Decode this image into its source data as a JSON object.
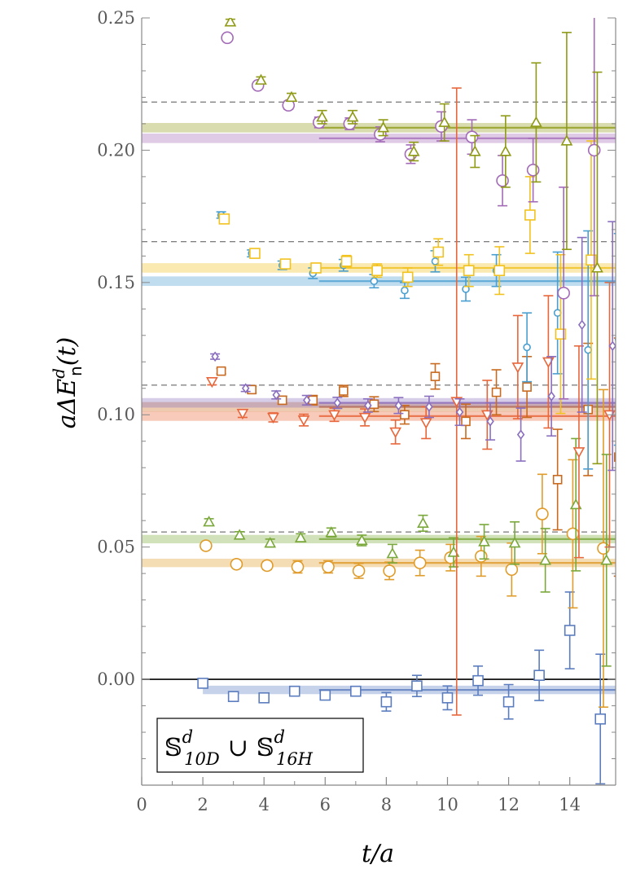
{
  "chart_data": {
    "type": "scatter",
    "title": "",
    "xlabel": "t/a",
    "ylabel": "aΔE",
    "ylabel_sup": "d",
    "ylabel_sub": "n",
    "ylabel_tail": "(t)",
    "xlim": [
      0,
      15.5
    ],
    "ylim": [
      -0.04,
      0.25
    ],
    "xticks": [
      0,
      2,
      4,
      6,
      8,
      10,
      12,
      14
    ],
    "yticks": [
      0.0,
      0.05,
      0.1,
      0.15,
      0.2,
      0.25
    ],
    "ytick_labels": [
      "0.00",
      "0.05",
      "0.10",
      "0.15",
      "0.20",
      "0.25"
    ],
    "legend": {
      "set1": "𝕊",
      "sup1": "d",
      "sub1": "10D",
      "union": "∪",
      "set2": "𝕊",
      "sup2": "d",
      "sub2": "16H",
      "position": "bottom-left"
    },
    "reference_lines": [
      0.0557,
      0.1112,
      0.1654,
      0.2182
    ],
    "zero_line": 0.0,
    "series": [
      {
        "marker": "square",
        "color": "#5b7dbf",
        "size": 6,
        "bands": [
          {
            "xmin": 2,
            "xmax": 15.5,
            "y": -0.004,
            "half": 0.0016
          }
        ],
        "points": [
          {
            "x": 2,
            "y": -0.0015,
            "e": 0.001
          },
          {
            "x": 3,
            "y": -0.0065,
            "e": 0.0012
          },
          {
            "x": 4,
            "y": -0.007,
            "e": 0.0013
          },
          {
            "x": 5,
            "y": -0.0045,
            "e": 0.0015
          },
          {
            "x": 6,
            "y": -0.006,
            "e": 0.0016
          },
          {
            "x": 7,
            "y": -0.0045,
            "e": 0.0018
          },
          {
            "x": 8,
            "y": -0.0085,
            "e": 0.0035
          },
          {
            "x": 9,
            "y": -0.0025,
            "e": 0.004
          },
          {
            "x": 10,
            "y": -0.007,
            "e": 0.0045
          },
          {
            "x": 11,
            "y": -0.0005,
            "e": 0.0055
          },
          {
            "x": 12,
            "y": -0.0085,
            "e": 0.0065
          },
          {
            "x": 13,
            "y": 0.0015,
            "e": 0.0095
          },
          {
            "x": 14,
            "y": 0.0185,
            "e": 0.0145
          },
          {
            "x": 15,
            "y": -0.015,
            "e": 0.0245
          }
        ]
      },
      {
        "marker": "circle",
        "color": "#e09c2a",
        "size": 7,
        "bands": [
          {
            "xmin": 0,
            "xmax": 15.5,
            "y": 0.044,
            "half": 0.0016
          }
        ],
        "points": [
          {
            "x": 2.1,
            "y": 0.0505,
            "e": 0.0012
          },
          {
            "x": 3.1,
            "y": 0.0435,
            "e": 0.0013
          },
          {
            "x": 4.1,
            "y": 0.043,
            "e": 0.0015
          },
          {
            "x": 5.1,
            "y": 0.0425,
            "e": 0.0023
          },
          {
            "x": 6.1,
            "y": 0.0425,
            "e": 0.0023
          },
          {
            "x": 7.1,
            "y": 0.041,
            "e": 0.0028
          },
          {
            "x": 8.1,
            "y": 0.041,
            "e": 0.0033
          },
          {
            "x": 9.1,
            "y": 0.044,
            "e": 0.0048
          },
          {
            "x": 10.1,
            "y": 0.046,
            "e": 0.005
          },
          {
            "x": 11.1,
            "y": 0.0465,
            "e": 0.0075
          },
          {
            "x": 12.1,
            "y": 0.0415,
            "e": 0.01
          },
          {
            "x": 13.1,
            "y": 0.0625,
            "e": 0.015
          },
          {
            "x": 14.1,
            "y": 0.055,
            "e": 0.028
          },
          {
            "x": 15.1,
            "y": 0.0495,
            "e": 0.06
          }
        ]
      },
      {
        "marker": "triangle-up",
        "color": "#7aa83a",
        "size": 6,
        "bands": [
          {
            "xmin": 0,
            "xmax": 15.5,
            "y": 0.053,
            "half": 0.0016
          }
        ],
        "points": [
          {
            "x": 2.2,
            "y": 0.0595,
            "e": 0.0012
          },
          {
            "x": 3.2,
            "y": 0.0545,
            "e": 0.0013
          },
          {
            "x": 4.2,
            "y": 0.0515,
            "e": 0.0015
          },
          {
            "x": 5.2,
            "y": 0.0535,
            "e": 0.0015
          },
          {
            "x": 6.2,
            "y": 0.0555,
            "e": 0.0017
          },
          {
            "x": 7.2,
            "y": 0.0525,
            "e": 0.002
          },
          {
            "x": 8.2,
            "y": 0.0475,
            "e": 0.0035
          },
          {
            "x": 9.2,
            "y": 0.059,
            "e": 0.003
          },
          {
            "x": 10.2,
            "y": 0.048,
            "e": 0.0055
          },
          {
            "x": 11.2,
            "y": 0.052,
            "e": 0.0065
          },
          {
            "x": 12.2,
            "y": 0.0515,
            "e": 0.008
          },
          {
            "x": 13.2,
            "y": 0.045,
            "e": 0.012
          },
          {
            "x": 14.2,
            "y": 0.066,
            "e": 0.025
          },
          {
            "x": 15.2,
            "y": 0.045,
            "e": 0.04
          }
        ]
      },
      {
        "marker": "triangle-down",
        "color": "#e8663a",
        "size": 6,
        "bands": [
          {
            "xmin": 0,
            "xmax": 15.5,
            "y": 0.0995,
            "half": 0.0018
          }
        ],
        "points": [
          {
            "x": 2.3,
            "y": 0.1125,
            "e": 0.0012
          },
          {
            "x": 3.3,
            "y": 0.1005,
            "e": 0.0015
          },
          {
            "x": 4.3,
            "y": 0.099,
            "e": 0.0017
          },
          {
            "x": 5.3,
            "y": 0.098,
            "e": 0.0022
          },
          {
            "x": 6.3,
            "y": 0.1,
            "e": 0.0025
          },
          {
            "x": 7.3,
            "y": 0.099,
            "e": 0.0032
          },
          {
            "x": 8.3,
            "y": 0.0935,
            "e": 0.0045
          },
          {
            "x": 9.3,
            "y": 0.097,
            "e": 0.006
          },
          {
            "x": 10.3,
            "y": 0.105,
            "e": 0.1185
          },
          {
            "x": 11.3,
            "y": 0.1,
            "e": 0.013
          },
          {
            "x": 12.3,
            "y": 0.118,
            "e": 0.0195
          },
          {
            "x": 13.3,
            "y": 0.12,
            "e": 0.025
          },
          {
            "x": 14.3,
            "y": 0.086,
            "e": 0.04
          },
          {
            "x": 15.3,
            "y": 0.1,
            "e": 0.05
          }
        ]
      },
      {
        "marker": "square",
        "color": "#c86a1f",
        "size": 5,
        "bands": [
          {
            "xmin": 0,
            "xmax": 15.5,
            "y": 0.103,
            "half": 0.0018
          }
        ],
        "points": [
          {
            "x": 2.6,
            "y": 0.1165,
            "e": 0.001
          },
          {
            "x": 3.6,
            "y": 0.1095,
            "e": 0.0012
          },
          {
            "x": 4.6,
            "y": 0.1055,
            "e": 0.0015
          },
          {
            "x": 5.6,
            "y": 0.1055,
            "e": 0.0018
          },
          {
            "x": 6.6,
            "y": 0.109,
            "e": 0.0021
          },
          {
            "x": 7.6,
            "y": 0.104,
            "e": 0.0028
          },
          {
            "x": 8.6,
            "y": 0.1,
            "e": 0.0035
          },
          {
            "x": 9.6,
            "y": 0.1145,
            "e": 0.0048
          },
          {
            "x": 10.6,
            "y": 0.0975,
            "e": 0.0065
          },
          {
            "x": 11.6,
            "y": 0.1085,
            "e": 0.0085
          },
          {
            "x": 12.6,
            "y": 0.1105,
            "e": 0.0115
          },
          {
            "x": 13.6,
            "y": 0.0755,
            "e": 0.019
          },
          {
            "x": 14.6,
            "y": 0.102,
            "e": 0.025
          },
          {
            "x": 15.6,
            "y": 0.084,
            "e": 0.045
          }
        ]
      },
      {
        "marker": "diamond",
        "color": "#8a6fbf",
        "size": 5,
        "bands": [
          {
            "xmin": 0,
            "xmax": 15.5,
            "y": 0.1045,
            "half": 0.0018
          }
        ],
        "points": [
          {
            "x": 2.4,
            "y": 0.122,
            "e": 0.001
          },
          {
            "x": 3.4,
            "y": 0.11,
            "e": 0.0012
          },
          {
            "x": 4.4,
            "y": 0.1075,
            "e": 0.0015
          },
          {
            "x": 5.4,
            "y": 0.1055,
            "e": 0.0018
          },
          {
            "x": 6.4,
            "y": 0.1045,
            "e": 0.0021
          },
          {
            "x": 7.4,
            "y": 0.1035,
            "e": 0.0025
          },
          {
            "x": 8.4,
            "y": 0.1035,
            "e": 0.003
          },
          {
            "x": 9.4,
            "y": 0.103,
            "e": 0.004
          },
          {
            "x": 10.4,
            "y": 0.101,
            "e": 0.005
          },
          {
            "x": 11.4,
            "y": 0.0975,
            "e": 0.007
          },
          {
            "x": 12.4,
            "y": 0.0925,
            "e": 0.01
          },
          {
            "x": 13.4,
            "y": 0.107,
            "e": 0.015
          },
          {
            "x": 14.4,
            "y": 0.134,
            "e": 0.033
          },
          {
            "x": 15.4,
            "y": 0.126,
            "e": 0.047
          }
        ]
      },
      {
        "marker": "circle",
        "color": "#4a9fd0",
        "size": 4,
        "bands": [
          {
            "xmin": 0,
            "xmax": 15.5,
            "y": 0.1505,
            "half": 0.0018
          }
        ],
        "points": [
          {
            "x": 2.6,
            "y": 0.1755,
            "e": 0.0012
          },
          {
            "x": 3.6,
            "y": 0.161,
            "e": 0.0013
          },
          {
            "x": 4.6,
            "y": 0.1565,
            "e": 0.0016
          },
          {
            "x": 5.6,
            "y": 0.1535,
            "e": 0.002
          },
          {
            "x": 6.6,
            "y": 0.1565,
            "e": 0.0022
          },
          {
            "x": 7.6,
            "y": 0.1505,
            "e": 0.0025
          },
          {
            "x": 8.6,
            "y": 0.147,
            "e": 0.003
          },
          {
            "x": 9.6,
            "y": 0.158,
            "e": 0.004
          },
          {
            "x": 10.6,
            "y": 0.1475,
            "e": 0.0045
          },
          {
            "x": 11.6,
            "y": 0.1545,
            "e": 0.006
          },
          {
            "x": 12.6,
            "y": 0.1255,
            "e": 0.013
          },
          {
            "x": 13.6,
            "y": 0.1385,
            "e": 0.023
          },
          {
            "x": 14.6,
            "y": 0.1245,
            "e": 0.045
          },
          {
            "x": 15.6,
            "y": 0.1285,
            "e": 0.04
          }
        ]
      },
      {
        "marker": "square",
        "color": "#f2c21f",
        "size": 6,
        "bands": [
          {
            "xmin": 0,
            "xmax": 15.5,
            "y": 0.1555,
            "half": 0.0018
          }
        ],
        "points": [
          {
            "x": 2.7,
            "y": 0.174,
            "e": 0.0012
          },
          {
            "x": 3.7,
            "y": 0.161,
            "e": 0.0013
          },
          {
            "x": 4.7,
            "y": 0.157,
            "e": 0.0015
          },
          {
            "x": 5.7,
            "y": 0.1555,
            "e": 0.0018
          },
          {
            "x": 6.7,
            "y": 0.158,
            "e": 0.0022
          },
          {
            "x": 7.7,
            "y": 0.1545,
            "e": 0.0025
          },
          {
            "x": 8.7,
            "y": 0.152,
            "e": 0.0035
          },
          {
            "x": 9.7,
            "y": 0.1615,
            "e": 0.005
          },
          {
            "x": 10.7,
            "y": 0.1545,
            "e": 0.006
          },
          {
            "x": 11.7,
            "y": 0.1545,
            "e": 0.009
          },
          {
            "x": 12.7,
            "y": 0.1755,
            "e": 0.0145
          },
          {
            "x": 13.7,
            "y": 0.1305,
            "e": 0.03
          },
          {
            "x": 14.7,
            "y": 0.1585,
            "e": 0.045
          },
          {
            "x": 15.7,
            "y": 0.154,
            "e": 0.05
          }
        ]
      },
      {
        "marker": "circle",
        "color": "#a36bb7",
        "size": 7,
        "bands": [
          {
            "xmin": 0,
            "xmax": 15.5,
            "y": 0.2045,
            "half": 0.0018
          }
        ],
        "points": [
          {
            "x": 2.8,
            "y": 0.2425,
            "e": 0.001
          },
          {
            "x": 3.8,
            "y": 0.2245,
            "e": 0.0012
          },
          {
            "x": 4.8,
            "y": 0.217,
            "e": 0.0015
          },
          {
            "x": 5.8,
            "y": 0.2105,
            "e": 0.002
          },
          {
            "x": 6.8,
            "y": 0.21,
            "e": 0.0022
          },
          {
            "x": 7.8,
            "y": 0.206,
            "e": 0.0028
          },
          {
            "x": 8.8,
            "y": 0.1985,
            "e": 0.0035
          },
          {
            "x": 9.8,
            "y": 0.209,
            "e": 0.0055
          },
          {
            "x": 10.8,
            "y": 0.205,
            "e": 0.0065
          },
          {
            "x": 11.8,
            "y": 0.1885,
            "e": 0.0095
          },
          {
            "x": 12.8,
            "y": 0.1925,
            "e": 0.012
          },
          {
            "x": 13.8,
            "y": 0.146,
            "e": 0.04
          },
          {
            "x": 14.8,
            "y": 0.2,
            "e": 0.055
          }
        ]
      },
      {
        "marker": "triangle-up",
        "color": "#8f9a16",
        "size": 6,
        "bands": [
          {
            "xmin": 0,
            "xmax": 15.5,
            "y": 0.2085,
            "half": 0.0018
          }
        ],
        "points": [
          {
            "x": 2.9,
            "y": 0.2485,
            "e": 0.001
          },
          {
            "x": 3.9,
            "y": 0.2265,
            "e": 0.0012
          },
          {
            "x": 4.9,
            "y": 0.22,
            "e": 0.0015
          },
          {
            "x": 5.9,
            "y": 0.2125,
            "e": 0.0025
          },
          {
            "x": 6.9,
            "y": 0.2125,
            "e": 0.0025
          },
          {
            "x": 7.9,
            "y": 0.2085,
            "e": 0.003
          },
          {
            "x": 8.9,
            "y": 0.1995,
            "e": 0.0035
          },
          {
            "x": 9.9,
            "y": 0.2105,
            "e": 0.007
          },
          {
            "x": 10.9,
            "y": 0.1995,
            "e": 0.006
          },
          {
            "x": 11.9,
            "y": 0.1995,
            "e": 0.0135
          },
          {
            "x": 12.9,
            "y": 0.2105,
            "e": 0.0225
          },
          {
            "x": 13.9,
            "y": 0.2035,
            "e": 0.041
          },
          {
            "x": 14.9,
            "y": 0.1555,
            "e": 0.074
          }
        ]
      }
    ]
  }
}
